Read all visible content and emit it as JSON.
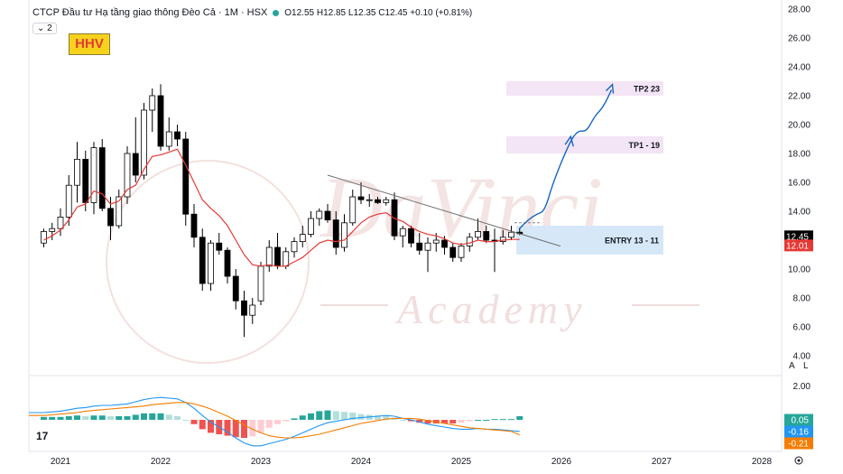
{
  "header": {
    "symbol": "CTCP Đầu tư Hạ tầng giao thông Đèo Cả · 1M · HSX",
    "ohlc": "O12.55 H12.85 L12.35 C12.45 +0.10 (+0.81%)"
  },
  "collapse_label": "2",
  "ticker_tag": "HHV",
  "tv_logo": "17",
  "axis_buttons": {
    "auto": "A",
    "log": "L"
  },
  "watermark": {
    "line1": "DaVinci",
    "line2": "Academy"
  },
  "colors": {
    "up": "#ffffff",
    "down": "#000000",
    "ema": "#e53935",
    "macd": "#2196f3",
    "signal": "#f57c00",
    "hist_up_strong": "#26a69a",
    "hist_up_weak": "#b2dfdb",
    "hist_down_strong": "#ef5350",
    "hist_down_weak": "#ffcdd2",
    "target_zone": "#f3e5f5",
    "entry_zone": "#d6e8f8",
    "projection": "#1565c0"
  },
  "chart_data": {
    "type": "candlestick",
    "price_axis": {
      "ylim": [
        4,
        28
      ],
      "ticks": [
        "4.00",
        "6.00",
        "8.00",
        "10.00",
        "12.00",
        "14.00",
        "16.00",
        "18.00",
        "20.00",
        "22.00",
        "24.00",
        "26.00",
        "28.00"
      ]
    },
    "time_axis": {
      "ticks": [
        "2021",
        "2022",
        "2023",
        "2024",
        "2025",
        "2026",
        "2027",
        "2028"
      ],
      "range": [
        "2020-10",
        "2028-03"
      ]
    },
    "candles": [
      {
        "t": "2020-11",
        "o": 11.8,
        "h": 12.8,
        "l": 11.5,
        "c": 12.6
      },
      {
        "t": "2020-12",
        "o": 12.6,
        "h": 13.2,
        "l": 12.0,
        "c": 12.8
      },
      {
        "t": "2021-01",
        "o": 12.8,
        "h": 14.2,
        "l": 12.3,
        "c": 13.6
      },
      {
        "t": "2021-02",
        "o": 13.6,
        "h": 16.5,
        "l": 13.0,
        "c": 15.8
      },
      {
        "t": "2021-03",
        "o": 15.8,
        "h": 18.8,
        "l": 14.6,
        "c": 17.6
      },
      {
        "t": "2021-04",
        "o": 17.6,
        "h": 18.2,
        "l": 14.0,
        "c": 14.6
      },
      {
        "t": "2021-05",
        "o": 14.6,
        "h": 18.8,
        "l": 13.8,
        "c": 18.4
      },
      {
        "t": "2021-06",
        "o": 18.4,
        "h": 19.0,
        "l": 14.0,
        "c": 14.2
      },
      {
        "t": "2021-07",
        "o": 14.2,
        "h": 15.0,
        "l": 12.0,
        "c": 13.0
      },
      {
        "t": "2021-08",
        "o": 13.0,
        "h": 15.5,
        "l": 12.8,
        "c": 15.0
      },
      {
        "t": "2021-09",
        "o": 15.0,
        "h": 18.5,
        "l": 14.5,
        "c": 18.0
      },
      {
        "t": "2021-10",
        "o": 18.0,
        "h": 20.5,
        "l": 16.0,
        "c": 16.5
      },
      {
        "t": "2021-11",
        "o": 16.5,
        "h": 21.5,
        "l": 16.2,
        "c": 21.0
      },
      {
        "t": "2021-12",
        "o": 21.0,
        "h": 22.5,
        "l": 19.5,
        "c": 22.0
      },
      {
        "t": "2022-01",
        "o": 22.0,
        "h": 22.8,
        "l": 18.2,
        "c": 18.5
      },
      {
        "t": "2022-02",
        "o": 18.5,
        "h": 20.5,
        "l": 18.2,
        "c": 19.5
      },
      {
        "t": "2022-03",
        "o": 19.5,
        "h": 20.0,
        "l": 18.5,
        "c": 19.0
      },
      {
        "t": "2022-04",
        "o": 19.0,
        "h": 19.5,
        "l": 13.0,
        "c": 13.8
      },
      {
        "t": "2022-05",
        "o": 13.8,
        "h": 14.5,
        "l": 11.5,
        "c": 12.2
      },
      {
        "t": "2022-06",
        "o": 12.2,
        "h": 12.8,
        "l": 8.5,
        "c": 9.0
      },
      {
        "t": "2022-07",
        "o": 9.0,
        "h": 12.0,
        "l": 8.5,
        "c": 11.8
      },
      {
        "t": "2022-08",
        "o": 11.8,
        "h": 12.5,
        "l": 11.0,
        "c": 11.3
      },
      {
        "t": "2022-09",
        "o": 11.3,
        "h": 11.5,
        "l": 9.0,
        "c": 9.5
      },
      {
        "t": "2022-10",
        "o": 9.5,
        "h": 10.0,
        "l": 7.2,
        "c": 7.8
      },
      {
        "t": "2022-11",
        "o": 7.8,
        "h": 8.5,
        "l": 5.3,
        "c": 6.8
      },
      {
        "t": "2022-12",
        "o": 6.8,
        "h": 8.0,
        "l": 6.2,
        "c": 7.5
      },
      {
        "t": "2023-01",
        "o": 7.8,
        "h": 10.5,
        "l": 7.5,
        "c": 10.2
      },
      {
        "t": "2023-02",
        "o": 10.2,
        "h": 12.0,
        "l": 9.8,
        "c": 11.5
      },
      {
        "t": "2023-03",
        "o": 11.5,
        "h": 12.5,
        "l": 10.0,
        "c": 10.2
      },
      {
        "t": "2023-04",
        "o": 10.2,
        "h": 11.5,
        "l": 10.0,
        "c": 11.2
      },
      {
        "t": "2023-05",
        "o": 11.2,
        "h": 12.2,
        "l": 10.8,
        "c": 11.9
      },
      {
        "t": "2023-06",
        "o": 11.9,
        "h": 13.0,
        "l": 11.5,
        "c": 12.4
      },
      {
        "t": "2023-07",
        "o": 12.4,
        "h": 14.0,
        "l": 12.2,
        "c": 13.5
      },
      {
        "t": "2023-08",
        "o": 13.5,
        "h": 14.2,
        "l": 13.0,
        "c": 14.0
      },
      {
        "t": "2023-09",
        "o": 14.0,
        "h": 14.5,
        "l": 13.2,
        "c": 13.4
      },
      {
        "t": "2023-10",
        "o": 13.4,
        "h": 14.0,
        "l": 11.0,
        "c": 11.5
      },
      {
        "t": "2023-11",
        "o": 11.5,
        "h": 13.8,
        "l": 11.2,
        "c": 13.2
      },
      {
        "t": "2023-12",
        "o": 13.2,
        "h": 15.5,
        "l": 13.0,
        "c": 15.0
      },
      {
        "t": "2024-01",
        "o": 15.0,
        "h": 16.0,
        "l": 14.5,
        "c": 14.8
      },
      {
        "t": "2024-02",
        "o": 14.8,
        "h": 15.2,
        "l": 14.3,
        "c": 14.8
      },
      {
        "t": "2024-03",
        "o": 14.8,
        "h": 15.0,
        "l": 14.5,
        "c": 14.6
      },
      {
        "t": "2024-04",
        "o": 14.6,
        "h": 15.0,
        "l": 14.4,
        "c": 14.8
      },
      {
        "t": "2024-05",
        "o": 14.8,
        "h": 15.3,
        "l": 12.0,
        "c": 12.3
      },
      {
        "t": "2024-06",
        "o": 12.3,
        "h": 13.0,
        "l": 11.5,
        "c": 12.8
      },
      {
        "t": "2024-07",
        "o": 12.8,
        "h": 13.0,
        "l": 11.5,
        "c": 11.8
      },
      {
        "t": "2024-08",
        "o": 11.8,
        "h": 12.5,
        "l": 11.0,
        "c": 11.3
      },
      {
        "t": "2024-09",
        "o": 11.3,
        "h": 12.2,
        "l": 9.8,
        "c": 11.8
      },
      {
        "t": "2024-10",
        "o": 11.8,
        "h": 12.5,
        "l": 11.2,
        "c": 12.0
      },
      {
        "t": "2024-11",
        "o": 12.0,
        "h": 12.3,
        "l": 11.0,
        "c": 11.5
      },
      {
        "t": "2024-12",
        "o": 11.5,
        "h": 11.8,
        "l": 10.5,
        "c": 10.8
      },
      {
        "t": "2025-01",
        "o": 10.8,
        "h": 11.8,
        "l": 10.5,
        "c": 11.6
      },
      {
        "t": "2025-02",
        "o": 11.6,
        "h": 12.5,
        "l": 11.2,
        "c": 12.2
      },
      {
        "t": "2025-03",
        "o": 12.2,
        "h": 13.5,
        "l": 12.0,
        "c": 12.6
      },
      {
        "t": "2025-04",
        "o": 12.6,
        "h": 13.0,
        "l": 11.8,
        "c": 12.0
      },
      {
        "t": "2025-05",
        "o": 12.0,
        "h": 12.8,
        "l": 9.8,
        "c": 11.9
      },
      {
        "t": "2025-06",
        "o": 11.9,
        "h": 12.7,
        "l": 11.7,
        "c": 12.2
      },
      {
        "t": "2025-07",
        "o": 12.2,
        "h": 13.0,
        "l": 12.0,
        "c": 12.55
      },
      {
        "t": "2025-08",
        "o": 12.55,
        "h": 12.85,
        "l": 12.35,
        "c": 12.45
      }
    ],
    "ema": [
      12.0,
      12.3,
      12.7,
      13.4,
      14.3,
      14.5,
      15.4,
      15.2,
      14.5,
      14.7,
      15.5,
      15.8,
      16.9,
      17.8,
      17.9,
      18.1,
      18.3,
      17.2,
      16.0,
      14.8,
      14.2,
      13.7,
      13.0,
      12.0,
      11.0,
      10.3,
      10.2,
      10.3,
      10.2,
      10.2,
      10.5,
      10.8,
      11.3,
      11.8,
      12.0,
      11.9,
      12.0,
      12.6,
      13.2,
      13.6,
      13.8,
      13.9,
      13.5,
      13.3,
      12.9,
      12.6,
      12.4,
      12.3,
      12.1,
      11.8,
      11.7,
      11.8,
      12.0,
      11.9,
      11.9,
      12.0,
      12.05,
      12.05
    ],
    "annotations": [
      {
        "label": "TP2 23",
        "zone": [
          22.0,
          23.0
        ]
      },
      {
        "label": "TP1 - 19",
        "zone": [
          18.0,
          19.2
        ]
      },
      {
        "label": "ENTRY 13 - 11",
        "zone": [
          11.0,
          13.0
        ]
      }
    ],
    "trendline": {
      "from": {
        "t": "2023-09",
        "y": 16.5
      },
      "to": {
        "t": "2025-09",
        "y": 11.9
      }
    },
    "projection": [
      {
        "t": "2025-08",
        "y": 12.8
      },
      {
        "t": "2025-09",
        "y": 13.4
      },
      {
        "t": "2025-10",
        "y": 13.8
      },
      {
        "t": "2025-11",
        "y": 14.0
      },
      {
        "t": "2025-12",
        "y": 16.0
      },
      {
        "t": "2026-02",
        "y": 18.8
      },
      {
        "t": "2026-03",
        "y": 19.6
      },
      {
        "t": "2026-04",
        "y": 19.5
      },
      {
        "t": "2026-05",
        "y": 20.6
      },
      {
        "t": "2026-06",
        "y": 21.2
      },
      {
        "t": "2026-07",
        "y": 22.4
      }
    ],
    "price_labels": {
      "close": "12.45",
      "ema": "12.01"
    },
    "macd": {
      "ylim": [
        -0.55,
        0.55
      ],
      "ticks": [
        "2.00"
      ],
      "labels": {
        "histogram": "0.05",
        "macd": "-0.16",
        "signal": "-0.21"
      },
      "macd_line": [
        0.1,
        0.11,
        0.12,
        0.14,
        0.16,
        0.17,
        0.19,
        0.2,
        0.2,
        0.21,
        0.22,
        0.25,
        0.28,
        0.3,
        0.31,
        0.3,
        0.29,
        0.24,
        0.16,
        0.06,
        -0.03,
        -0.1,
        -0.17,
        -0.25,
        -0.32,
        -0.36,
        -0.36,
        -0.33,
        -0.3,
        -0.27,
        -0.23,
        -0.18,
        -0.13,
        -0.08,
        -0.04,
        -0.02,
        0.0,
        0.02,
        0.03,
        0.04,
        0.05,
        0.06,
        0.05,
        0.02,
        0.0,
        -0.03,
        -0.06,
        -0.08,
        -0.1,
        -0.12,
        -0.13,
        -0.13,
        -0.12,
        -0.13,
        -0.13,
        -0.14,
        -0.15,
        -0.16
      ],
      "signal_line": [
        0.06,
        0.07,
        0.08,
        0.09,
        0.1,
        0.12,
        0.13,
        0.14,
        0.15,
        0.16,
        0.17,
        0.18,
        0.19,
        0.21,
        0.22,
        0.23,
        0.24,
        0.24,
        0.22,
        0.19,
        0.15,
        0.1,
        0.05,
        -0.01,
        -0.07,
        -0.13,
        -0.18,
        -0.22,
        -0.24,
        -0.25,
        -0.25,
        -0.24,
        -0.22,
        -0.2,
        -0.17,
        -0.14,
        -0.11,
        -0.08,
        -0.05,
        -0.03,
        -0.01,
        0.01,
        0.02,
        0.02,
        0.02,
        0.01,
        -0.01,
        -0.03,
        -0.05,
        -0.07,
        -0.09,
        -0.11,
        -0.12,
        -0.13,
        -0.14,
        -0.15,
        -0.16,
        -0.21
      ],
      "histogram": [
        0.04,
        0.04,
        0.04,
        0.05,
        0.06,
        0.05,
        0.06,
        0.06,
        0.05,
        0.05,
        0.05,
        0.07,
        0.09,
        0.09,
        0.09,
        0.07,
        0.05,
        0.0,
        -0.06,
        -0.13,
        -0.18,
        -0.2,
        -0.22,
        -0.24,
        -0.25,
        -0.23,
        -0.18,
        -0.11,
        -0.06,
        -0.02,
        0.02,
        0.06,
        0.09,
        0.12,
        0.13,
        0.12,
        0.11,
        0.1,
        0.08,
        0.07,
        0.06,
        0.05,
        0.03,
        0.0,
        -0.02,
        -0.04,
        -0.05,
        -0.05,
        -0.05,
        -0.05,
        -0.04,
        -0.02,
        0.0,
        0.0,
        0.01,
        0.01,
        0.01,
        0.05
      ]
    }
  }
}
